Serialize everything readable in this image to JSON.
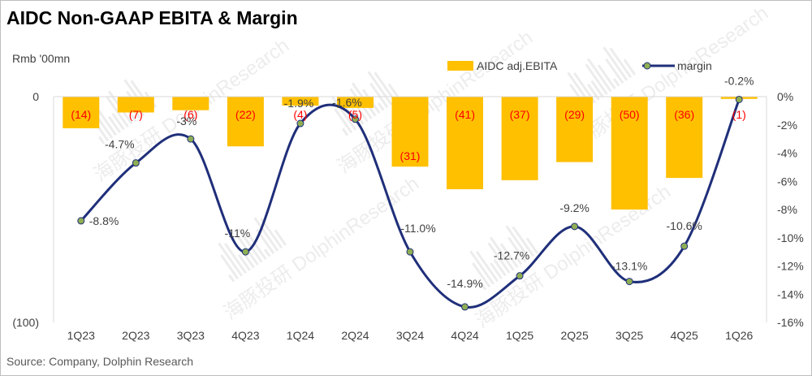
{
  "title": "AIDC Non-GAAP EBITA & Margin",
  "unit_label": "Rmb '00mn",
  "source": "Source: Company, Dolphin Research",
  "watermark": "海豚投研 DolphinResearch",
  "colors": {
    "bar": "#ffc000",
    "line": "#1f2f7a",
    "marker": "#8fae54",
    "bar_label": "#ff0000"
  },
  "chart_data": {
    "type": "bar",
    "categories": [
      "1Q23",
      "2Q23",
      "3Q23",
      "4Q23",
      "1Q24",
      "2Q24",
      "3Q24",
      "4Q24",
      "1Q25",
      "2Q25",
      "3Q25",
      "4Q25",
      "1Q26"
    ],
    "series": [
      {
        "name": "AIDC adj.EBITA",
        "type": "bar",
        "axis": "left",
        "values": [
          -14,
          -7,
          -6,
          -22,
          -4,
          -5,
          -31,
          -41,
          -37,
          -29,
          -50,
          -36,
          -1
        ],
        "labels": [
          "(14)",
          "(7)",
          "(6)",
          "(22)",
          "(4)",
          "(5)",
          "(31)",
          "(41)",
          "(37)",
          "(29)",
          "(50)",
          "(36)",
          "(1)"
        ]
      },
      {
        "name": "margin",
        "type": "line",
        "axis": "right",
        "values": [
          -8.8,
          -4.7,
          -3.0,
          -11.0,
          -1.9,
          -1.6,
          -11.0,
          -14.9,
          -12.7,
          -9.2,
          -13.1,
          -10.6,
          -0.2
        ],
        "labels": [
          "-8.8%",
          "-4.7%",
          "-3%",
          "-11%",
          "-1.9%",
          "-1.6%",
          "-11.0%",
          "-14.9%",
          "-12.7%",
          "-9.2%",
          "-13.1%",
          "-10.6%",
          "-0.2%"
        ]
      }
    ],
    "y_left": {
      "ylim": [
        -100,
        0
      ],
      "ticks": [
        0,
        -100
      ],
      "tick_labels": [
        "0",
        "(100)"
      ]
    },
    "y_right": {
      "ylim": [
        -16,
        0
      ],
      "ticks": [
        0,
        -2,
        -4,
        -6,
        -8,
        -10,
        -12,
        -14,
        -16
      ],
      "tick_labels": [
        "0%",
        "-2%",
        "-4%",
        "-6%",
        "-8%",
        "-10%",
        "-12%",
        "-14%",
        "-16%"
      ]
    },
    "legend_position": "top",
    "grid": false
  }
}
